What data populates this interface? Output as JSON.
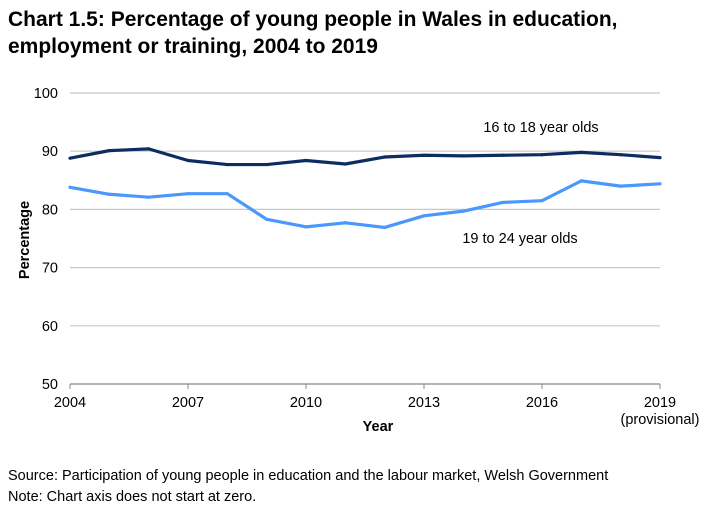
{
  "chart_data": {
    "type": "line",
    "title_line1": "Chart 1.5: Percentage of young people in Wales in education,",
    "title_line2": "employment or training, 2004 to 2019",
    "xlabel": "Year",
    "ylabel": "Percentage",
    "ylim": [
      50,
      100
    ],
    "yticks": [
      "50",
      "60",
      "70",
      "80",
      "90",
      "100"
    ],
    "x": [
      2004,
      2005,
      2006,
      2007,
      2008,
      2009,
      2010,
      2011,
      2012,
      2013,
      2014,
      2015,
      2016,
      2017,
      2018,
      2019
    ],
    "xticks": [
      "2004",
      "2007",
      "2010",
      "2013",
      "2016",
      "2019"
    ],
    "xtick_extra": "(provisional)",
    "grid": true,
    "series": [
      {
        "name": "16 to 18 year olds",
        "color": "#0d2d61",
        "values": [
          88.8,
          90.1,
          90.4,
          88.4,
          87.7,
          87.7,
          88.4,
          87.8,
          89.0,
          89.3,
          89.2,
          89.3,
          89.4,
          89.8,
          89.4,
          88.9
        ]
      },
      {
        "name": "19 to 24 year olds",
        "color": "#4a98fc",
        "values": [
          83.8,
          82.6,
          82.1,
          82.7,
          82.7,
          78.3,
          77.0,
          77.7,
          76.9,
          78.9,
          79.7,
          81.2,
          81.5,
          84.9,
          84.0,
          84.4
        ]
      }
    ]
  },
  "footer": {
    "source": "Source: Participation of young people in education and the labour market, Welsh Government",
    "note": "Note: Chart axis does not start at zero."
  }
}
